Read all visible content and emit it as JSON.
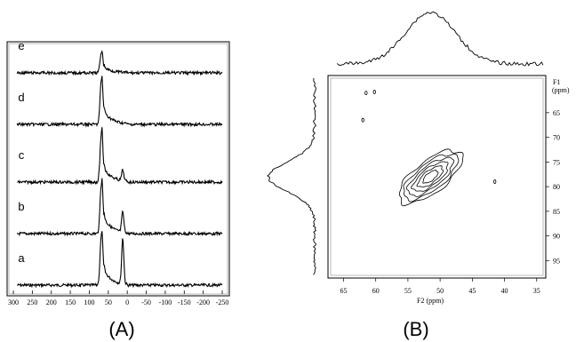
{
  "panels": {
    "A": "(A)",
    "B": "(B)"
  },
  "chart_data": [
    {
      "type": "line",
      "x_ticks": [
        "300",
        "250",
        "200",
        "150",
        "100",
        "50",
        "0",
        "-50",
        "-100",
        "-150",
        "-200",
        "-250"
      ],
      "xlim": [
        300,
        -250
      ],
      "series": [
        {
          "name": "a",
          "peaks": [
            {
              "x": 68,
              "height": 0.88,
              "width": 5
            },
            {
              "x": 12,
              "height": 0.8,
              "width": 4
            }
          ],
          "shoulder": 0.35
        },
        {
          "name": "b",
          "peaks": [
            {
              "x": 68,
              "height": 0.95,
              "width": 5
            },
            {
              "x": 12,
              "height": 0.38,
              "width": 4
            }
          ],
          "shoulder": 0.4
        },
        {
          "name": "c",
          "peaks": [
            {
              "x": 68,
              "height": 0.92,
              "width": 5
            },
            {
              "x": 12,
              "height": 0.2,
              "width": 4
            }
          ],
          "shoulder": 0.35
        },
        {
          "name": "d",
          "peaks": [
            {
              "x": 68,
              "height": 0.88,
              "width": 5
            }
          ],
          "shoulder": 0.35
        },
        {
          "name": "e",
          "peaks": [
            {
              "x": 68,
              "height": 0.62,
              "width": 5
            }
          ],
          "shoulder": 0.22
        }
      ]
    },
    {
      "type": "contour",
      "xlabel": "F2 (ppm)",
      "ylabel": "F1",
      "ylabel_unit": "(ppm)",
      "x_ticks": [
        "65",
        "60",
        "55",
        "50",
        "45",
        "40",
        "35"
      ],
      "y_ticks": [
        "65",
        "70",
        "75",
        "80",
        "85",
        "90",
        "95"
      ],
      "xlim": [
        67,
        34
      ],
      "ylim": [
        58,
        98
      ],
      "contour_center": {
        "x": 51.5,
        "y": 78
      },
      "projection_peak_f2": 51.5,
      "projection_peak_f1": 78
    }
  ]
}
